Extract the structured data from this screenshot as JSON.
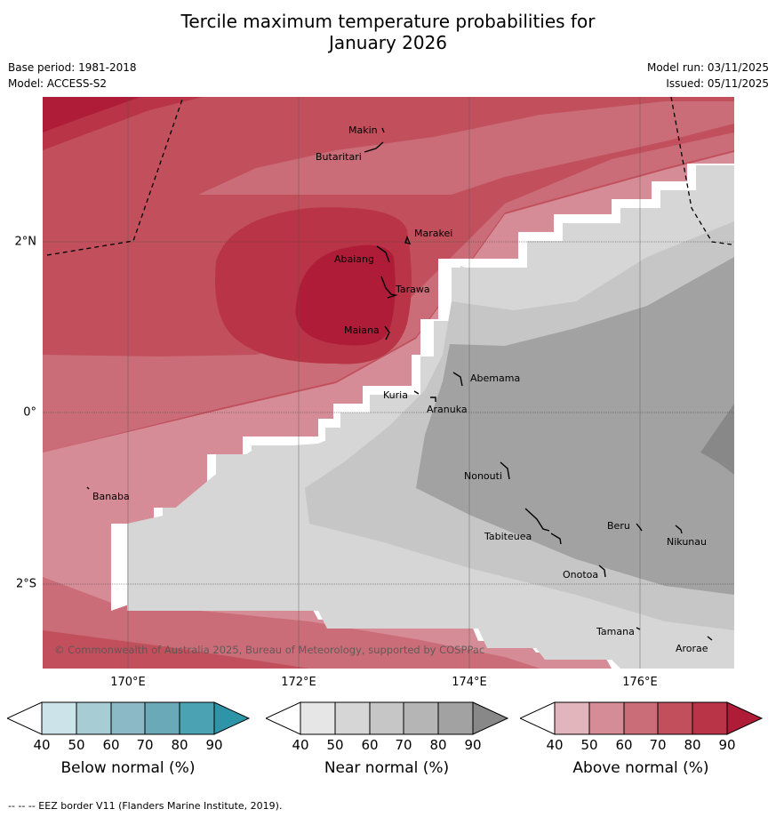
{
  "header": {
    "title_line1": "Tercile maximum temperature probabilities for",
    "title_line2": "January 2026",
    "base_period": "Base period: 1981-2018",
    "model": "Model: ACCESS-S2",
    "model_run": "Model run: 03/11/2025",
    "issued": "Issued: 05/11/2025"
  },
  "map": {
    "longitude_labels": [
      "170°E",
      "172°E",
      "174°E",
      "176°E"
    ],
    "latitude_labels": [
      "2°N",
      "0°",
      "2°S"
    ],
    "places": [
      "Makin",
      "Butaritari",
      "Marakei",
      "Abaiang",
      "Tarawa",
      "Maiana",
      "Abemama",
      "Kuria",
      "Aranuka",
      "Banaba",
      "Nonouti",
      "Tabiteuea",
      "Beru",
      "Nikunau",
      "Onotoa",
      "Tamana",
      "Arorae"
    ],
    "copyright": "© Commonwealth of Australia 2025, Bureau of Meteorology, supported by COSPPac"
  },
  "legend": {
    "ticks": [
      "40",
      "50",
      "60",
      "70",
      "80",
      "90"
    ],
    "below": {
      "title": "Below normal (%)",
      "colors": [
        "#ffffff",
        "#cce3ea",
        "#a8ccd4",
        "#8bbac6",
        "#6aaab8",
        "#4aa2b2",
        "#2e95a8"
      ]
    },
    "near": {
      "title": "Near normal (%)",
      "colors": [
        "#ffffff",
        "#e6e6e6",
        "#d6d6d6",
        "#c6c6c6",
        "#b5b5b5",
        "#a2a2a2",
        "#888888"
      ]
    },
    "above": {
      "title": "Above normal (%)",
      "colors": [
        "#ffffff",
        "#e2b5bc",
        "#d68c96",
        "#ca6d78",
        "#c1505c",
        "#b93446",
        "#ae1c38"
      ]
    }
  },
  "footer": {
    "eez_note": "--  --  -- EEZ border V11 (Flanders Marine Institute, 2019)."
  }
}
